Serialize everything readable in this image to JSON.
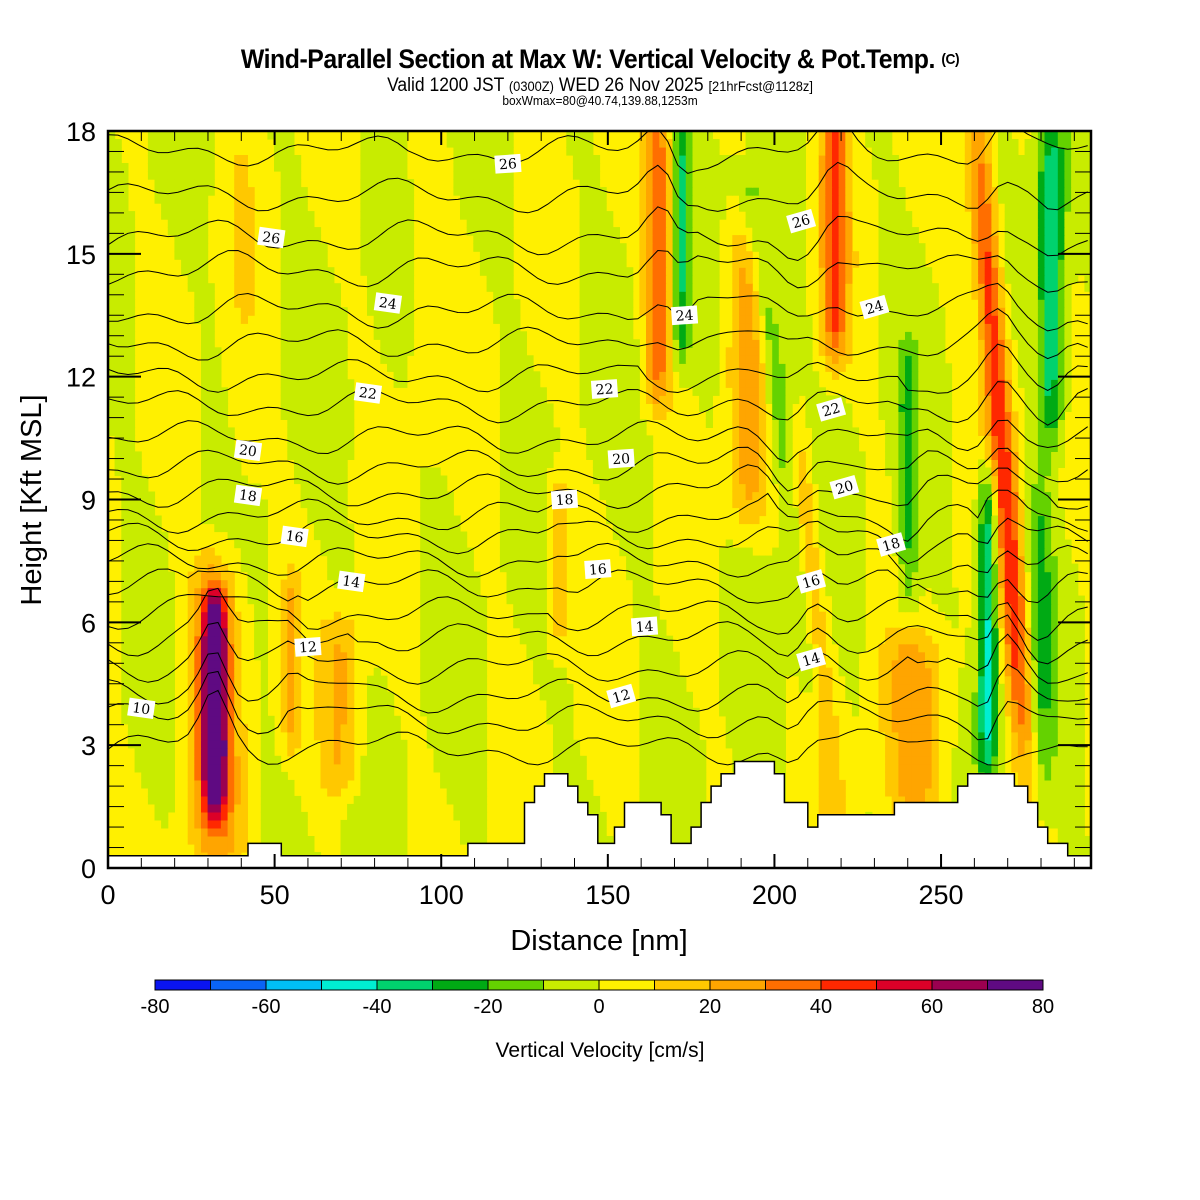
{
  "header": {
    "title": "Wind-Parallel Section at Max W: Vertical Velocity & Pot.Temp.",
    "copyright": "(C)",
    "valid_prefix": "Valid 1200 JST",
    "valid_utc": "(0300Z)",
    "valid_date": "WED 26 Nov 2025",
    "forecast": "[21hrFcst@1128z]",
    "box_wmax": "boxWmax=80@40.74,139.88,1253m"
  },
  "chart_data": {
    "type": "heatmap",
    "title": "Wind-Parallel Section at Max W: Vertical Velocity & Pot.Temp.",
    "xlabel": "Distance [nm]",
    "ylabel": "Height [Kft MSL]",
    "xlim": [
      0,
      295
    ],
    "ylim": [
      0,
      18
    ],
    "x_ticks": [
      "0",
      "50",
      "100",
      "150",
      "200",
      "250"
    ],
    "x_tick_values": [
      0,
      50,
      100,
      150,
      200,
      250
    ],
    "x_minor_step": 10,
    "y_ticks": [
      "0",
      "3",
      "6",
      "9",
      "12",
      "15",
      "18"
    ],
    "y_tick_values": [
      0,
      3,
      6,
      9,
      12,
      15,
      18
    ],
    "y_minor_step": 0.5,
    "colorbar": {
      "title": "Vertical Velocity [cm/s]",
      "bounds": [
        -80,
        -70,
        -60,
        -50,
        -40,
        -30,
        -20,
        -10,
        0,
        10,
        20,
        30,
        40,
        50,
        60,
        70,
        80
      ],
      "tick_labels": [
        "-80",
        "-60",
        "-40",
        "-20",
        "0",
        "20",
        "40",
        "60",
        "80"
      ],
      "tick_values": [
        -80,
        -60,
        -40,
        -20,
        0,
        20,
        40,
        60,
        80
      ],
      "colors": [
        "#0a14f0",
        "#0a64f5",
        "#00bef5",
        "#00eed2",
        "#00d26e",
        "#00aa14",
        "#64d200",
        "#c8ec00",
        "#fff000",
        "#ffc800",
        "#ffa500",
        "#ff6e00",
        "#ff2800",
        "#dc0028",
        "#9b0050",
        "#5f0a82"
      ]
    },
    "background_bin": 0,
    "w_features": [
      {
        "x": 32,
        "ymin": 2.2,
        "ymax": 6.0,
        "halfwidth": 3.5,
        "peak": 75
      },
      {
        "x": 32,
        "ymin": 0.6,
        "ymax": 7.0,
        "halfwidth": 8,
        "peak": 30
      },
      {
        "x": 55,
        "ymin": 3.5,
        "ymax": 6.5,
        "halfwidth": 2.5,
        "peak": 20
      },
      {
        "x": 70,
        "ymin": 2.5,
        "ymax": 5.5,
        "halfwidth": 6,
        "peak": 22
      },
      {
        "x": 40,
        "ymin": 9.0,
        "ymax": 18,
        "halfwidth": 6,
        "peak": 6
      },
      {
        "x": 95,
        "ymin": 11.0,
        "ymax": 17.5,
        "halfwidth": 6,
        "peak": 6
      },
      {
        "x": 135,
        "ymin": 6.0,
        "ymax": 9.0,
        "halfwidth": 3,
        "peak": 18
      },
      {
        "x": 165,
        "ymin": 12.0,
        "ymax": 18,
        "halfwidth": 4,
        "peak": 38
      },
      {
        "x": 172,
        "ymin": 13.0,
        "ymax": 18,
        "halfwidth": 2.5,
        "peak": -28
      },
      {
        "x": 192,
        "ymin": 9.0,
        "ymax": 15,
        "halfwidth": 6,
        "peak": 25
      },
      {
        "x": 205,
        "ymin": 2.0,
        "ymax": 16,
        "halfwidth": 4,
        "peak": -25,
        "tilt": -1.0
      },
      {
        "x": 218,
        "ymin": 13.0,
        "ymax": 18,
        "halfwidth": 4,
        "peak": 42
      },
      {
        "x": 212,
        "ymin": 1.5,
        "ymax": 10,
        "halfwidth": 4,
        "peak": 30,
        "tilt": -0.8
      },
      {
        "x": 242,
        "ymin": 1.5,
        "ymax": 5,
        "halfwidth": 10,
        "peak": 22
      },
      {
        "x": 240,
        "ymin": 7.0,
        "ymax": 12,
        "halfwidth": 3,
        "peak": -22
      },
      {
        "x": 268,
        "ymin": 3.0,
        "ymax": 18,
        "halfwidth": 4,
        "peak": 48,
        "tilt": -0.6
      },
      {
        "x": 264,
        "ymin": 3.0,
        "ymax": 9,
        "halfwidth": 3,
        "peak": -45
      },
      {
        "x": 283,
        "ymin": 11.0,
        "ymax": 17.5,
        "halfwidth": 4,
        "peak": -40
      },
      {
        "x": 280,
        "ymin": 2.5,
        "ymax": 9,
        "halfwidth": 4,
        "peak": -20
      }
    ],
    "terrain": [
      [
        0,
        0.3
      ],
      [
        42,
        0.3
      ],
      [
        42,
        0.6
      ],
      [
        52,
        0.6
      ],
      [
        52,
        0.3
      ],
      [
        108,
        0.3
      ],
      [
        108,
        0.6
      ],
      [
        125,
        0.6
      ],
      [
        125,
        1.6
      ],
      [
        128,
        1.6
      ],
      [
        128,
        2.0
      ],
      [
        131,
        2.0
      ],
      [
        131,
        2.3
      ],
      [
        138,
        2.3
      ],
      [
        138,
        2.0
      ],
      [
        141,
        2.0
      ],
      [
        141,
        1.6
      ],
      [
        144,
        1.6
      ],
      [
        144,
        1.3
      ],
      [
        147,
        1.3
      ],
      [
        147,
        0.6
      ],
      [
        152,
        0.6
      ],
      [
        152,
        1.0
      ],
      [
        155,
        1.0
      ],
      [
        155,
        1.6
      ],
      [
        166,
        1.6
      ],
      [
        166,
        1.3
      ],
      [
        169,
        1.3
      ],
      [
        169,
        0.6
      ],
      [
        175,
        0.6
      ],
      [
        175,
        1.0
      ],
      [
        178,
        1.0
      ],
      [
        178,
        1.6
      ],
      [
        181,
        1.6
      ],
      [
        181,
        2.0
      ],
      [
        184,
        2.0
      ],
      [
        184,
        2.3
      ],
      [
        188,
        2.3
      ],
      [
        188,
        2.6
      ],
      [
        200,
        2.6
      ],
      [
        200,
        2.3
      ],
      [
        203,
        2.3
      ],
      [
        203,
        1.6
      ],
      [
        210,
        1.6
      ],
      [
        210,
        1.0
      ],
      [
        213,
        1.0
      ],
      [
        213,
        1.3
      ],
      [
        236,
        1.3
      ],
      [
        236,
        1.6
      ],
      [
        255,
        1.6
      ],
      [
        255,
        2.0
      ],
      [
        258,
        2.0
      ],
      [
        258,
        2.3
      ],
      [
        272,
        2.3
      ],
      [
        272,
        2.0
      ],
      [
        276,
        2.0
      ],
      [
        276,
        1.6
      ],
      [
        279,
        1.6
      ],
      [
        279,
        1.0
      ],
      [
        282,
        1.0
      ],
      [
        282,
        0.6
      ],
      [
        288,
        0.6
      ],
      [
        288,
        0.3
      ],
      [
        295,
        0.3
      ]
    ],
    "contours": {
      "variable": "Potential Temperature",
      "interval": 1,
      "labels": [
        {
          "text": "10",
          "x": 10,
          "y": 3.9
        },
        {
          "text": "12",
          "x": 60,
          "y": 5.4
        },
        {
          "text": "12",
          "x": 154,
          "y": 4.2
        },
        {
          "text": "14",
          "x": 73,
          "y": 7.0
        },
        {
          "text": "14",
          "x": 161,
          "y": 5.9
        },
        {
          "text": "14",
          "x": 211,
          "y": 5.1
        },
        {
          "text": "16",
          "x": 56,
          "y": 8.1
        },
        {
          "text": "16",
          "x": 147,
          "y": 7.3
        },
        {
          "text": "16",
          "x": 211,
          "y": 7.0
        },
        {
          "text": "18",
          "x": 42,
          "y": 9.1
        },
        {
          "text": "18",
          "x": 137,
          "y": 9.0
        },
        {
          "text": "18",
          "x": 235,
          "y": 7.9
        },
        {
          "text": "20",
          "x": 42,
          "y": 10.2
        },
        {
          "text": "20",
          "x": 154,
          "y": 10.0
        },
        {
          "text": "20",
          "x": 221,
          "y": 9.3
        },
        {
          "text": "22",
          "x": 78,
          "y": 11.6
        },
        {
          "text": "22",
          "x": 149,
          "y": 11.7
        },
        {
          "text": "22",
          "x": 217,
          "y": 11.2
        },
        {
          "text": "24",
          "x": 84,
          "y": 13.8
        },
        {
          "text": "24",
          "x": 173,
          "y": 13.5
        },
        {
          "text": "24",
          "x": 230,
          "y": 13.7
        },
        {
          "text": "26",
          "x": 49,
          "y": 15.4
        },
        {
          "text": "26",
          "x": 120,
          "y": 17.2
        },
        {
          "text": "26",
          "x": 208,
          "y": 15.8
        }
      ],
      "base_levels": [
        2.9,
        3.6,
        4.2,
        4.9,
        5.6,
        6.2,
        6.9,
        7.5,
        8.1,
        8.6,
        9.2,
        9.8,
        10.5,
        11.3,
        12.0,
        12.8,
        13.6,
        14.6,
        15.4,
        16.4,
        17.5
      ]
    }
  }
}
